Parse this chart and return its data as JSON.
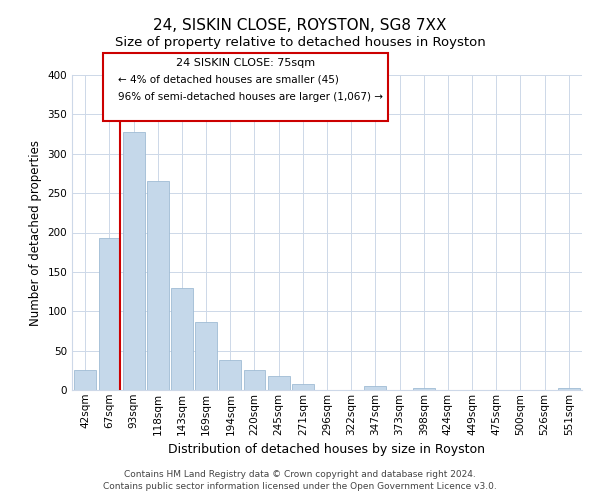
{
  "title": "24, SISKIN CLOSE, ROYSTON, SG8 7XX",
  "subtitle": "Size of property relative to detached houses in Royston",
  "xlabel": "Distribution of detached houses by size in Royston",
  "ylabel": "Number of detached properties",
  "bar_labels": [
    "42sqm",
    "67sqm",
    "93sqm",
    "118sqm",
    "143sqm",
    "169sqm",
    "194sqm",
    "220sqm",
    "245sqm",
    "271sqm",
    "296sqm",
    "322sqm",
    "347sqm",
    "373sqm",
    "398sqm",
    "424sqm",
    "449sqm",
    "475sqm",
    "500sqm",
    "526sqm",
    "551sqm"
  ],
  "bar_values": [
    25,
    193,
    328,
    266,
    130,
    86,
    38,
    26,
    18,
    8,
    0,
    0,
    5,
    0,
    3,
    0,
    0,
    0,
    0,
    0,
    2
  ],
  "bar_color": "#c5d8ea",
  "bar_edge_color": "#a0bcd4",
  "vline_color": "#cc0000",
  "ylim": [
    0,
    400
  ],
  "yticks": [
    0,
    50,
    100,
    150,
    200,
    250,
    300,
    350,
    400
  ],
  "annotation_title": "24 SISKIN CLOSE: 75sqm",
  "annotation_line1": "← 4% of detached houses are smaller (45)",
  "annotation_line2": "96% of semi-detached houses are larger (1,067) →",
  "annotation_box_color": "#ffffff",
  "annotation_box_edge": "#cc0000",
  "footnote1": "Contains HM Land Registry data © Crown copyright and database right 2024.",
  "footnote2": "Contains public sector information licensed under the Open Government Licence v3.0.",
  "bg_color": "#ffffff",
  "grid_color": "#cdd8e8",
  "title_fontsize": 11,
  "subtitle_fontsize": 9.5,
  "xlabel_fontsize": 9,
  "ylabel_fontsize": 8.5,
  "tick_fontsize": 7.5,
  "annotation_title_fontsize": 8,
  "annotation_text_fontsize": 7.5,
  "footnote_fontsize": 6.5
}
